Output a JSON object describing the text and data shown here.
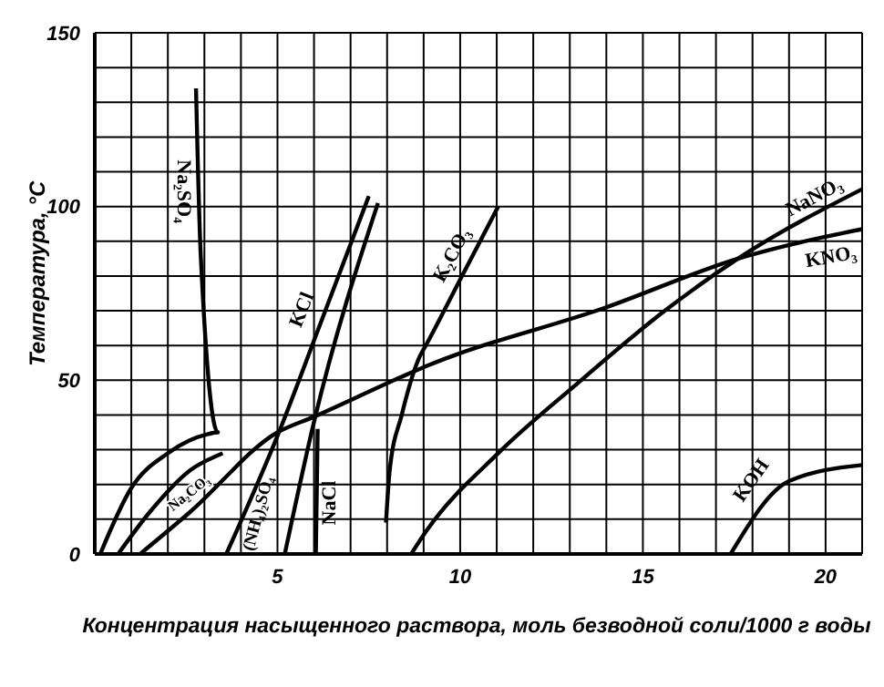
{
  "chart_data": {
    "type": "line",
    "xlabel": "Концентрация насыщенного раствора, моль безводной соли/1000 г воды",
    "ylabel": "Температура, °C",
    "xlim": [
      0,
      21
    ],
    "ylim": [
      0,
      150
    ],
    "xticks": [
      {
        "value": 1,
        "label": null
      },
      {
        "value": 2,
        "label": null
      },
      {
        "value": 3,
        "label": null
      },
      {
        "value": 4,
        "label": null
      },
      5,
      {
        "value": 6,
        "label": null
      },
      {
        "value": 7,
        "label": null
      },
      {
        "value": 8,
        "label": null
      },
      {
        "value": 9,
        "label": null
      },
      10,
      {
        "value": 11,
        "label": null
      },
      {
        "value": 12,
        "label": null
      },
      {
        "value": 13,
        "label": null
      },
      {
        "value": 14,
        "label": null
      },
      15,
      {
        "value": 16,
        "label": null
      },
      {
        "value": 17,
        "label": null
      },
      {
        "value": 18,
        "label": null
      },
      {
        "value": 19,
        "label": null
      },
      20,
      {
        "value": 21,
        "label": null
      }
    ],
    "yticks": [
      0,
      {
        "value": 10,
        "label": null
      },
      {
        "value": 20,
        "label": null
      },
      {
        "value": 30,
        "label": null
      },
      {
        "value": 40,
        "label": null
      },
      50,
      {
        "value": 60,
        "label": null
      },
      {
        "value": 70,
        "label": null
      },
      {
        "value": 80,
        "label": null
      },
      {
        "value": 90,
        "label": null
      },
      100,
      {
        "value": 110,
        "label": null
      },
      {
        "value": 120,
        "label": null
      },
      {
        "value": 130,
        "label": null
      },
      {
        "value": 140,
        "label": null
      },
      150
    ],
    "grid": true,
    "series": [
      {
        "name": "Na₂SO₄",
        "color": "#000000",
        "x": [
          0.15,
          1,
          2,
          3.1,
          3.37,
          2.9,
          2.77
        ],
        "values": [
          0,
          19,
          29,
          34.5,
          35,
          86,
          134
        ]
      },
      {
        "name": "Na₂CO₃",
        "color": "#000000",
        "x": [
          0.64,
          1.5,
          2.6,
          3.5
        ],
        "values": [
          0,
          12,
          24,
          29
        ]
      },
      {
        "name": "KNO₃",
        "color": "#000000",
        "x": [
          1.24,
          2.6,
          5,
          6,
          8.4,
          9.06,
          14,
          17.6,
          21
        ],
        "values": [
          0,
          12,
          35,
          39.5,
          51,
          54,
          71,
          85,
          93.5
        ]
      },
      {
        "name": "KCl",
        "color": "#000000",
        "x": [
          3.6,
          5,
          6.2,
          7.5
        ],
        "values": [
          0,
          34,
          67,
          103
        ]
      },
      {
        "name": "(NH₄)₂SO₄",
        "color": "#000000",
        "x": [
          5.2,
          6,
          7.75
        ],
        "values": [
          0,
          38,
          101
        ]
      },
      {
        "name": "NaCl",
        "color": "#000000",
        "x": [
          6.05,
          6.1
        ],
        "values": [
          0,
          36
        ]
      },
      {
        "name": "K₂CO₃",
        "color": "#000000",
        "x": [
          7.97,
          8.07,
          8.4,
          8.9,
          9.06,
          10,
          11.04
        ],
        "values": [
          9,
          24,
          40,
          57,
          60,
          79,
          100
        ]
      },
      {
        "name": "NaNO₃",
        "color": "#000000",
        "x": [
          8.66,
          9.06,
          11.04,
          13.2,
          15.6,
          17.6,
          21
        ],
        "values": [
          0,
          6.4,
          29,
          49,
          70,
          85,
          105
        ]
      },
      {
        "name": "KOH",
        "color": "#000000",
        "x": [
          17.4,
          19,
          21
        ],
        "values": [
          0,
          21,
          25.6
        ]
      }
    ]
  }
}
